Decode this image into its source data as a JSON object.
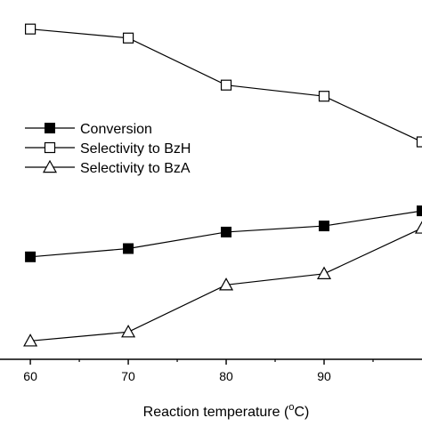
{
  "chart_data": {
    "type": "line",
    "title": "",
    "xlabel": {
      "prefix": "Reaction temperature (",
      "superscript": "o",
      "suffix": "C)"
    },
    "ylabel": "",
    "x": [
      60,
      70,
      80,
      90,
      100
    ],
    "xticks": [
      "60",
      "70",
      "80",
      "90"
    ],
    "xlim": [
      56.9,
      100
    ],
    "series": [
      {
        "name": "Conversion",
        "marker": "filled-square",
        "values": [
          30.0,
          32.3,
          36.9,
          38.6,
          42.8
        ]
      },
      {
        "name": "Selectivity to BzH",
        "marker": "open-square",
        "values": [
          93.4,
          90.9,
          77.8,
          74.7,
          62.0
        ]
      },
      {
        "name": "Selectivity to BzA",
        "marker": "open-triangle",
        "values": [
          6.6,
          9.1,
          22.2,
          25.3,
          38.0
        ]
      }
    ],
    "ylim": [
      0,
      100
    ],
    "legend_position": "middle-left",
    "grid": false,
    "colors": {
      "line": "#000000",
      "marker_fill": "#000000",
      "marker_open": "#ffffff",
      "background": "#ffffff"
    }
  }
}
